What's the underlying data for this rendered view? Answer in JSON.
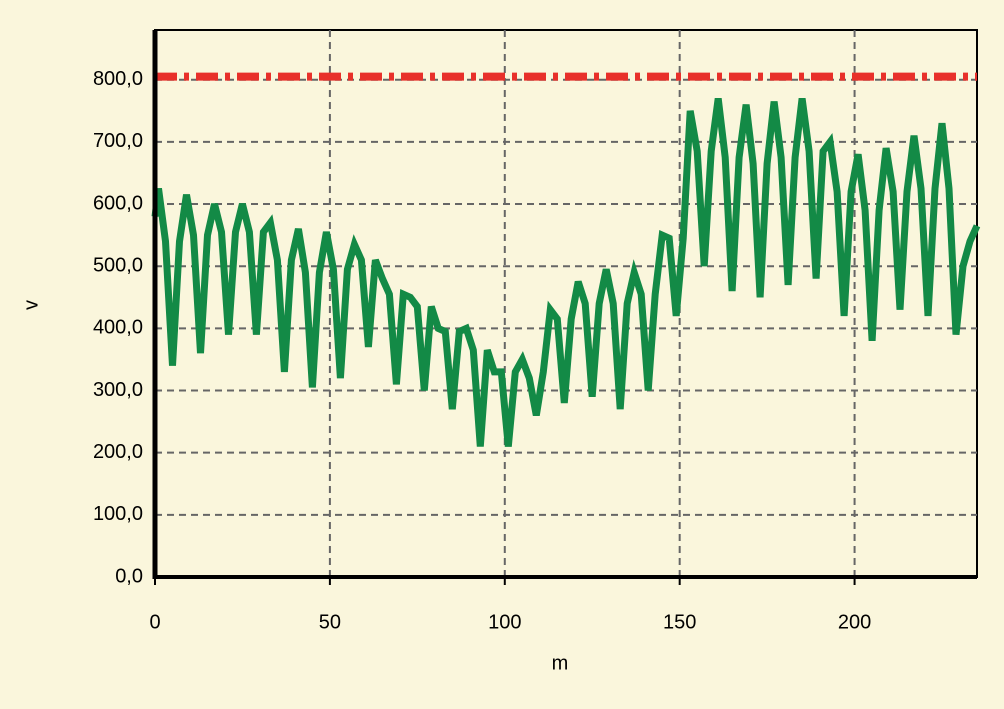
{
  "chart_data": {
    "type": "line",
    "xlabel": "m",
    "ylabel": "v",
    "xlim": [
      0,
      235
    ],
    "ylim": [
      0,
      880
    ],
    "xticks": [
      0,
      50,
      100,
      150,
      200
    ],
    "yticks": [
      {
        "value": 0,
        "label": "0,0"
      },
      {
        "value": 100,
        "label": "100,0"
      },
      {
        "value": 200,
        "label": "200,0"
      },
      {
        "value": 300,
        "label": "300,0"
      },
      {
        "value": 400,
        "label": "400,0"
      },
      {
        "value": 500,
        "label": "500,0"
      },
      {
        "value": 600,
        "label": "600,0"
      },
      {
        "value": 700,
        "label": "700,0"
      },
      {
        "value": 800,
        "label": "800,0"
      }
    ],
    "grid": true,
    "series": [
      {
        "color": "#138a46",
        "linestyle": "solid",
        "x": [
          0,
          1,
          3,
          5,
          7,
          9,
          11,
          13,
          15,
          17,
          19,
          21,
          23,
          25,
          27,
          29,
          31,
          33,
          35,
          37,
          39,
          41,
          43,
          45,
          47,
          49,
          51,
          53,
          55,
          57,
          59,
          61,
          63,
          65,
          67,
          69,
          71,
          73,
          75,
          77,
          79,
          81,
          83,
          85,
          87,
          89,
          91,
          93,
          95,
          97,
          99,
          101,
          103,
          105,
          107,
          109,
          111,
          113,
          115,
          117,
          119,
          121,
          123,
          125,
          127,
          129,
          131,
          133,
          135,
          137,
          139,
          141,
          143,
          145,
          147,
          149,
          151,
          153,
          155,
          157,
          159,
          161,
          163,
          165,
          167,
          169,
          171,
          173,
          175,
          177,
          179,
          181,
          183,
          185,
          187,
          189,
          191,
          193,
          195,
          197,
          199,
          201,
          203,
          205,
          207,
          209,
          211,
          213,
          215,
          217,
          219,
          221,
          223,
          225,
          227,
          229,
          231,
          233,
          235
        ],
        "values": [
          580,
          625,
          540,
          340,
          540,
          615,
          550,
          360,
          550,
          600,
          555,
          390,
          555,
          600,
          555,
          390,
          555,
          570,
          510,
          330,
          510,
          560,
          490,
          305,
          490,
          555,
          495,
          320,
          495,
          535,
          510,
          370,
          510,
          480,
          455,
          310,
          455,
          450,
          435,
          300,
          435,
          400,
          395,
          270,
          395,
          400,
          365,
          210,
          365,
          330,
          330,
          210,
          330,
          350,
          320,
          260,
          330,
          430,
          415,
          280,
          415,
          475,
          440,
          290,
          440,
          495,
          440,
          270,
          440,
          490,
          455,
          300,
          455,
          550,
          545,
          420,
          545,
          750,
          685,
          500,
          685,
          770,
          675,
          460,
          675,
          760,
          665,
          450,
          665,
          765,
          675,
          470,
          675,
          770,
          685,
          480,
          685,
          700,
          620,
          420,
          620,
          680,
          590,
          380,
          590,
          690,
          620,
          430,
          620,
          710,
          625,
          420,
          625,
          730,
          625,
          390,
          500,
          540,
          565
        ]
      },
      {
        "color": "#e8302a",
        "linestyle": "dashdot",
        "x": [
          0,
          235
        ],
        "values": [
          805,
          805
        ]
      }
    ]
  }
}
